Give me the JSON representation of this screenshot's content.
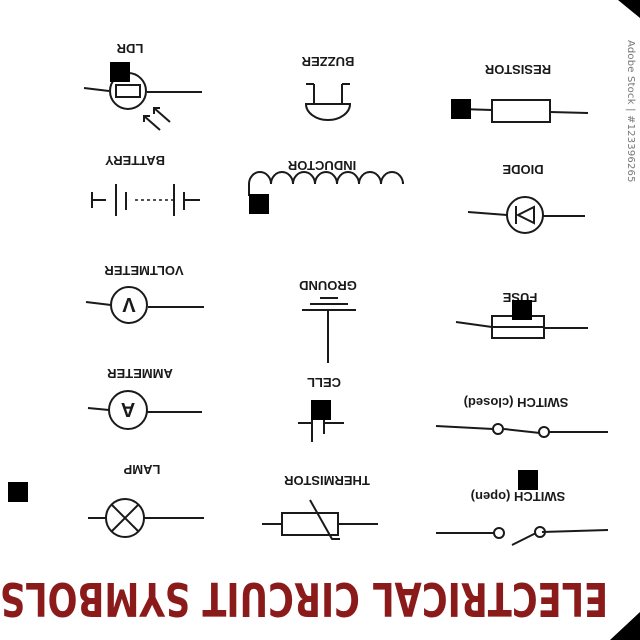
{
  "title": "ELECTRICAL CIRCUIT SYMBOLS",
  "watermark": "Adobe Stock | #123396265",
  "colors": {
    "title": "#8b1a1a",
    "ink": "#1a1a1a",
    "paper": "#ffffff"
  },
  "symbols": {
    "lamp": "LAMP",
    "thermistor": "THERMISTOR",
    "switch_open": "SWITCH (open)",
    "ammeter": "AMMETER",
    "cell": "CELL",
    "switch_closed": "SWITCH (closed)",
    "voltmeter": "VOLTMETER",
    "ground": "GROUND",
    "fuse": "FUSE",
    "battery": "BATTERY",
    "inductor": "INDUCTOR",
    "diode": "DIODE",
    "ldr": "LDR",
    "buzzer": "BUZZER",
    "resistor": "RESISTOR"
  },
  "meter_letters": {
    "ammeter": "A",
    "voltmeter": "V"
  }
}
